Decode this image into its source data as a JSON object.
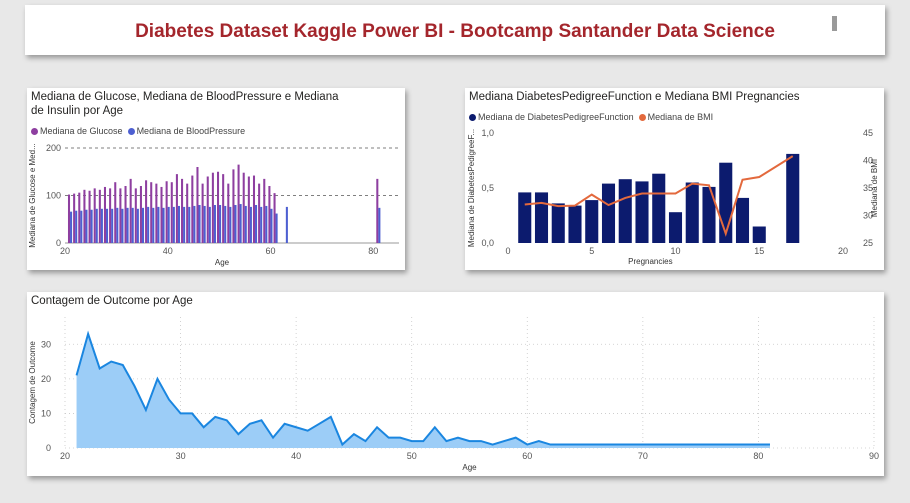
{
  "header": {
    "title": "Diabetes Dataset Kaggle Power BI - Bootcamp Santander Data Science"
  },
  "colors": {
    "title": "#a4262c",
    "glucose": "#8e3fa0",
    "bloodpressure": "#4d5fd1",
    "dpf": "#0c1b6e",
    "bmi": "#e3693d",
    "area_line": "#1a86e0",
    "area_fill": "#9ccdf7"
  },
  "chart_data": [
    {
      "type": "bar",
      "title": "Mediana de Glucose, Mediana de BloodPressure e Mediana de Insulin por Age",
      "xlabel": "Age",
      "ylabel": "Mediana de Glucose e Med...",
      "xlim": [
        20,
        85
      ],
      "ylim": [
        0,
        200
      ],
      "x_ticks": [
        "20",
        "40",
        "60",
        "80"
      ],
      "y_ticks": [
        "0",
        "100",
        "200"
      ],
      "gridlines": "dashed horizontal",
      "legend": "top-left",
      "x": [
        21,
        22,
        23,
        24,
        25,
        26,
        27,
        28,
        29,
        30,
        31,
        32,
        33,
        34,
        35,
        36,
        37,
        38,
        39,
        40,
        41,
        42,
        43,
        44,
        45,
        46,
        47,
        48,
        49,
        50,
        51,
        52,
        53,
        54,
        55,
        56,
        57,
        58,
        59,
        60,
        61,
        62,
        63,
        81
      ],
      "series": [
        {
          "name": "Mediana de Glucose",
          "values": [
            102,
            104,
            106,
            112,
            110,
            115,
            112,
            118,
            115,
            128,
            115,
            120,
            135,
            115,
            120,
            132,
            128,
            125,
            118,
            130,
            128,
            145,
            135,
            125,
            142,
            160,
            125,
            140,
            148,
            150,
            145,
            125,
            155,
            165,
            148,
            140,
            142,
            125,
            135,
            120,
            105,
            0,
            0,
            135
          ]
        },
        {
          "name": "Mediana de BloodPressure",
          "values": [
            66,
            68,
            68,
            70,
            70,
            72,
            72,
            72,
            72,
            74,
            72,
            74,
            74,
            72,
            74,
            76,
            74,
            76,
            74,
            76,
            76,
            78,
            76,
            76,
            78,
            80,
            78,
            76,
            80,
            80,
            78,
            76,
            80,
            82,
            78,
            76,
            80,
            76,
            78,
            72,
            62,
            0,
            76,
            74
          ]
        }
      ]
    },
    {
      "type": "bar",
      "title": "Mediana DiabetesPedigreeFunction e Mediana BMI Pregnancies",
      "xlabel": "Pregnancies",
      "ylabel": "Mediana de DiabetesPedigreeF...",
      "y2label": "Mediana de BMI",
      "xlim": [
        0,
        20
      ],
      "ylim": [
        0,
        1.0
      ],
      "y2lim": [
        25,
        45
      ],
      "x_ticks": [
        "0",
        "5",
        "10",
        "15",
        "20"
      ],
      "y_ticks": [
        "0,0",
        "0,5",
        "1,0"
      ],
      "y2_ticks": [
        "25",
        "30",
        "35",
        "40",
        "45"
      ],
      "legend": "top-left",
      "x": [
        1,
        2,
        3,
        4,
        5,
        6,
        7,
        8,
        9,
        10,
        11,
        12,
        13,
        14,
        15,
        17
      ],
      "series": [
        {
          "name": "Mediana de DiabetesPedigreeFunction",
          "type": "bar",
          "axis": "left",
          "values": [
            0.46,
            0.46,
            0.36,
            0.34,
            0.39,
            0.54,
            0.58,
            0.56,
            0.63,
            0.28,
            0.55,
            0.51,
            0.73,
            0.41,
            0.15,
            0.81
          ]
        },
        {
          "name": "Mediana de BMI",
          "type": "line",
          "axis": "right",
          "values": [
            32.0,
            32.3,
            31.7,
            31.8,
            33.8,
            31.9,
            33.2,
            34.0,
            34.0,
            34.0,
            35.8,
            35.5,
            26.7,
            36.5,
            37.0,
            40.8
          ]
        }
      ]
    },
    {
      "type": "area",
      "title": "Contagem de Outcome por Age",
      "xlabel": "Age",
      "ylabel": "Contagem de Outcome",
      "xlim": [
        20,
        90
      ],
      "ylim": [
        0,
        35
      ],
      "x_ticks": [
        "20",
        "30",
        "40",
        "50",
        "60",
        "70",
        "80",
        "90"
      ],
      "y_ticks": [
        "0",
        "10",
        "20",
        "30"
      ],
      "gridlines": "dotted",
      "x": [
        21,
        22,
        23,
        24,
        25,
        26,
        27,
        28,
        29,
        30,
        31,
        32,
        33,
        34,
        35,
        36,
        37,
        38,
        39,
        40,
        41,
        42,
        43,
        44,
        45,
        46,
        47,
        48,
        49,
        50,
        51,
        52,
        53,
        54,
        55,
        56,
        57,
        58,
        59,
        60,
        61,
        62,
        63,
        64,
        65,
        66,
        67,
        68,
        69,
        70,
        81
      ],
      "series": [
        {
          "name": "Contagem de Outcome",
          "values": [
            21,
            33,
            23,
            25,
            24,
            18,
            11,
            20,
            14,
            10,
            10,
            6,
            9,
            8,
            4,
            7,
            8,
            3,
            7,
            6,
            5,
            7,
            9,
            1,
            4,
            2,
            6,
            3,
            3,
            2,
            2,
            6,
            2,
            3,
            2,
            2,
            1,
            2,
            3,
            1,
            2,
            1,
            1,
            1,
            1,
            1,
            1,
            1,
            1,
            1,
            1
          ]
        }
      ]
    }
  ]
}
